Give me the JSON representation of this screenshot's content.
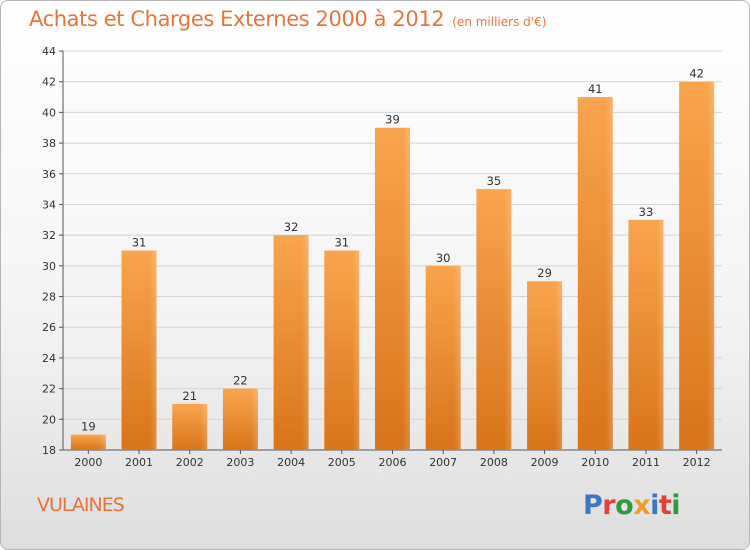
{
  "title": "Achats et Charges Externes 2000 à 2012",
  "unit": "(en milliers d'€)",
  "place": "VULAINES",
  "brand": {
    "letters": [
      {
        "char": "P",
        "color": "#3b78c4"
      },
      {
        "char": "r",
        "color": "#e3403b"
      },
      {
        "char": "o",
        "color": "#2e9a3c"
      },
      {
        "char": "x",
        "color": "#ef9d2a"
      },
      {
        "char": "i",
        "color": "#3b78c4"
      },
      {
        "char": "t",
        "color": "#e3403b"
      },
      {
        "char": "i",
        "color": "#2e9a3c"
      }
    ]
  },
  "colors": {
    "title": "#e8743b",
    "bar_top": "#f9a54d",
    "bar_bottom": "#d8741a",
    "grid": "#d4d4d4",
    "axis": "#555555"
  },
  "chart_data": {
    "type": "bar",
    "title": "Achats et Charges Externes 2000 à 2012",
    "unit": "(en milliers d'€)",
    "categories": [
      "2000",
      "2001",
      "2002",
      "2003",
      "2004",
      "2005",
      "2006",
      "2007",
      "2008",
      "2009",
      "2010",
      "2011",
      "2012"
    ],
    "values": [
      19,
      31,
      21,
      22,
      32,
      31,
      39,
      30,
      35,
      29,
      41,
      33,
      42
    ],
    "ylim": [
      18,
      44
    ],
    "yticks": [
      18,
      20,
      22,
      24,
      26,
      28,
      30,
      32,
      34,
      36,
      38,
      40,
      42,
      44
    ],
    "grid": true,
    "data_labels": true
  }
}
